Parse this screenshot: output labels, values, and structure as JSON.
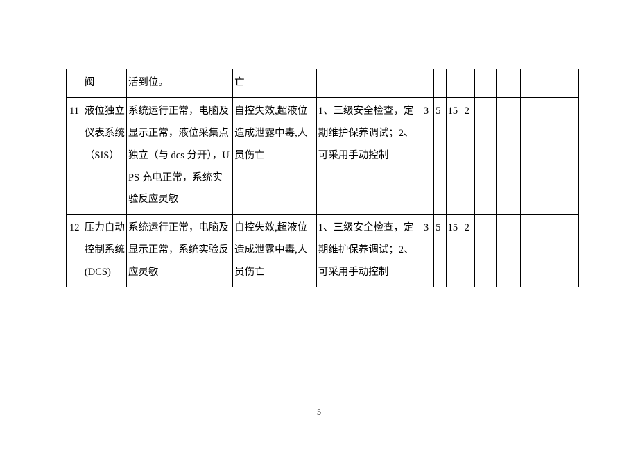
{
  "table": {
    "font_size": 14.5,
    "line_height": 2.2,
    "border_color": "#000000",
    "text_color": "#000000",
    "columns": [
      {
        "class": "col-idx"
      },
      {
        "class": "col-item"
      },
      {
        "class": "col-status"
      },
      {
        "class": "col-risk"
      },
      {
        "class": "col-measure"
      },
      {
        "class": "col-n1"
      },
      {
        "class": "col-n2"
      },
      {
        "class": "col-n3"
      },
      {
        "class": "col-n4"
      },
      {
        "class": "col-e1"
      },
      {
        "class": "col-e2"
      },
      {
        "class": "col-e3"
      }
    ],
    "rows": [
      [
        "",
        "阀",
        "活到位。",
        "亡",
        "",
        "",
        "",
        "",
        "",
        "",
        "",
        ""
      ],
      [
        "11",
        "液位独立仪表系统（SIS）",
        "系统运行正常，电脑及显示正常，液位采集点独立（与 dcs 分开），UPS 充电正常，系统实验反应灵敏",
        "自控失效,超液位造成泄露中毒,人员伤亡",
        "1、三级安全检查，定期维护保养调试；2、可采用手动控制",
        "3",
        "5",
        "15",
        "2",
        "",
        "",
        ""
      ],
      [
        "12",
        "压力自动控制系统 (DCS)",
        "系统运行正常，电脑及显示正常，系统实验反应灵敏",
        "自控失效,超液位造成泄露中毒,人员伤亡",
        "1、三级安全检查，定期维护保养调试；2、可采用手动控制",
        "3",
        "5",
        "15",
        "2",
        "",
        "",
        ""
      ]
    ]
  },
  "page_number": "5",
  "background_color": "#ffffff"
}
